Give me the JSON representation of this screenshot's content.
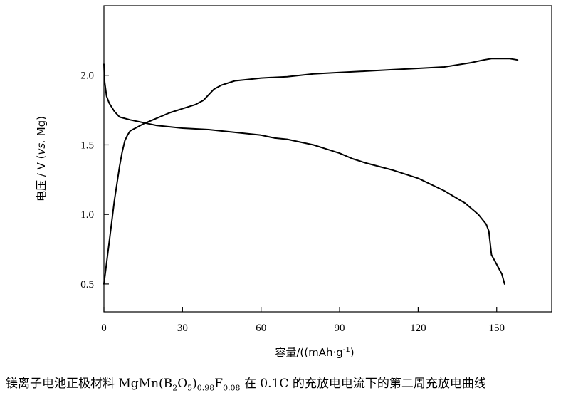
{
  "chart_data": {
    "type": "line",
    "xlabel": "容量/((mAh·g",
    "xlabel_sup": "-1",
    "xlabel_end": ")",
    "ylabel_prefix": "电压 / V (",
    "ylabel_italic": "vs.",
    "ylabel_suffix": " Mg)",
    "xlim": [
      0,
      171
    ],
    "ylim": [
      0.3,
      2.5
    ],
    "xticks": [
      0,
      30,
      60,
      90,
      120,
      150
    ],
    "yticks": [
      0.5,
      1.0,
      1.5,
      2.0
    ],
    "ytick_labels": [
      "0.5",
      "1.0",
      "1.5",
      "2.0"
    ],
    "series": [
      {
        "x": [
          0,
          0.3,
          1,
          2,
          4,
          6,
          10,
          20,
          30,
          40,
          50,
          60,
          65,
          70,
          80,
          85,
          90,
          95,
          100,
          110,
          120,
          130,
          138,
          143,
          146,
          147,
          148,
          150,
          152,
          153
        ],
        "y": [
          2.08,
          1.95,
          1.85,
          1.8,
          1.74,
          1.7,
          1.68,
          1.64,
          1.62,
          1.61,
          1.59,
          1.57,
          1.55,
          1.54,
          1.5,
          1.47,
          1.44,
          1.4,
          1.37,
          1.32,
          1.26,
          1.17,
          1.08,
          1.0,
          0.93,
          0.88,
          0.71,
          0.64,
          0.57,
          0.5
        ]
      },
      {
        "x": [
          0,
          2,
          4,
          6,
          7,
          8,
          9,
          10,
          12,
          15,
          20,
          25,
          30,
          35,
          38,
          40,
          42,
          45,
          50,
          55,
          60,
          70,
          80,
          90,
          100,
          110,
          120,
          130,
          140,
          145,
          148,
          150,
          155,
          158
        ],
        "y": [
          0.5,
          0.8,
          1.1,
          1.35,
          1.45,
          1.53,
          1.57,
          1.6,
          1.62,
          1.65,
          1.69,
          1.73,
          1.76,
          1.79,
          1.82,
          1.86,
          1.9,
          1.93,
          1.96,
          1.97,
          1.98,
          1.99,
          2.01,
          2.02,
          2.03,
          2.04,
          2.05,
          2.06,
          2.09,
          2.11,
          2.12,
          2.12,
          2.12,
          2.11
        ]
      }
    ]
  },
  "caption": {
    "prefix": "镁离子电池正极材料 MgMn(B",
    "sub1": "2",
    "mid1": "O",
    "sub2": "5",
    "mid2": ")",
    "sub3": "0.98",
    "mid3": "F",
    "sub4": "0.08",
    "suffix": " 在 0.1C 的充放电电流下的第二周充放电曲线"
  }
}
